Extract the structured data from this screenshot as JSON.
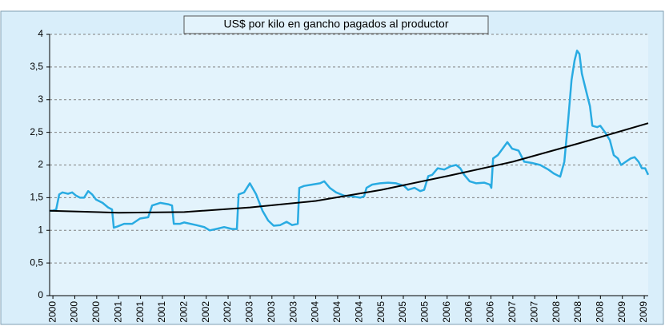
{
  "chart_data": {
    "type": "line",
    "title": "US$ por kilo en gancho pagados al productor",
    "xlim": [
      -0.15,
      27.18
    ],
    "xticks": [
      {
        "value": 0,
        "label": "2000"
      },
      {
        "value": 1,
        "label": "2000"
      },
      {
        "value": 2,
        "label": "2000"
      },
      {
        "value": 3,
        "label": "2001"
      },
      {
        "value": 4,
        "label": "2001"
      },
      {
        "value": 5,
        "label": "2001"
      },
      {
        "value": 6,
        "label": "2002"
      },
      {
        "value": 7,
        "label": "2002"
      },
      {
        "value": 8,
        "label": "2002"
      },
      {
        "value": 9,
        "label": "2003"
      },
      {
        "value": 10,
        "label": "2003"
      },
      {
        "value": 11,
        "label": "2003"
      },
      {
        "value": 12,
        "label": "2004"
      },
      {
        "value": 13,
        "label": "2004"
      },
      {
        "value": 14,
        "label": "2004"
      },
      {
        "value": 15,
        "label": "2005"
      },
      {
        "value": 16,
        "label": "2005"
      },
      {
        "value": 17,
        "label": "2005"
      },
      {
        "value": 18,
        "label": "2006"
      },
      {
        "value": 19,
        "label": "2006"
      },
      {
        "value": 20,
        "label": "2006"
      },
      {
        "value": 21,
        "label": "2007"
      },
      {
        "value": 22,
        "label": "2007"
      },
      {
        "value": 23,
        "label": "2008"
      },
      {
        "value": 24,
        "label": "2008"
      },
      {
        "value": 25,
        "label": "2008"
      },
      {
        "value": 26,
        "label": "2009"
      },
      {
        "value": 27,
        "label": "2009"
      }
    ],
    "ylim": [
      0,
      4
    ],
    "yticks": [
      0,
      {
        "value": 0.5,
        "label": "0,5"
      },
      1,
      {
        "value": 1.5,
        "label": "1,5"
      },
      2,
      {
        "value": 2.5,
        "label": "2,5"
      },
      3,
      {
        "value": 3.5,
        "label": "3,5"
      },
      4
    ],
    "grid": true,
    "series": [
      {
        "color": "#29abe2",
        "x": [
          -0.15,
          0,
          0.15,
          0.29,
          0.44,
          0.69,
          0.88,
          1.06,
          1.24,
          1.42,
          1.61,
          1.79,
          1.97,
          2.27,
          2.52,
          2.7,
          2.78,
          2.96,
          3.25,
          3.62,
          3.98,
          4.35,
          4.53,
          4.9,
          5.26,
          5.44,
          5.52,
          5.81,
          5.99,
          6.54,
          6.91,
          7.16,
          7.45,
          7.82,
          8.18,
          8.4,
          8.48,
          8.73,
          8.99,
          9.28,
          9.57,
          9.83,
          10.08,
          10.38,
          10.67,
          10.92,
          11.18,
          11.25,
          11.47,
          11.84,
          12.2,
          12.39,
          12.64,
          12.93,
          13.3,
          13.66,
          14.03,
          14.21,
          14.32,
          14.58,
          14.94,
          15.31,
          15.67,
          16.04,
          16.22,
          16.51,
          16.77,
          16.95,
          17.14,
          17.32,
          17.57,
          17.87,
          18.16,
          18.41,
          18.6,
          18.78,
          19.03,
          19.33,
          19.69,
          19.95,
          20.02,
          20.1,
          20.31,
          20.53,
          20.75,
          20.97,
          21.26,
          21.52,
          21.88,
          22.25,
          22.62,
          22.87,
          23.16,
          23.35,
          23.53,
          23.68,
          23.82,
          23.93,
          24.04,
          24.15,
          24.37,
          24.52,
          24.63,
          24.85,
          24.99,
          25.21,
          25.43,
          25.61,
          25.8,
          25.94,
          26.16,
          26.38,
          26.56,
          26.74,
          26.89,
          27.04,
          27.18
        ],
        "values": [
          1.3,
          1.3,
          1.32,
          1.55,
          1.58,
          1.56,
          1.58,
          1.53,
          1.5,
          1.5,
          1.6,
          1.55,
          1.47,
          1.42,
          1.35,
          1.32,
          1.04,
          1.06,
          1.1,
          1.1,
          1.18,
          1.2,
          1.38,
          1.42,
          1.4,
          1.38,
          1.1,
          1.1,
          1.12,
          1.08,
          1.05,
          1.0,
          1.02,
          1.05,
          1.02,
          1.02,
          1.55,
          1.58,
          1.72,
          1.55,
          1.3,
          1.15,
          1.07,
          1.08,
          1.13,
          1.08,
          1.1,
          1.65,
          1.68,
          1.7,
          1.72,
          1.75,
          1.65,
          1.58,
          1.53,
          1.52,
          1.5,
          1.52,
          1.65,
          1.7,
          1.72,
          1.73,
          1.72,
          1.68,
          1.62,
          1.65,
          1.6,
          1.62,
          1.83,
          1.85,
          1.95,
          1.93,
          1.98,
          2.0,
          1.95,
          1.85,
          1.75,
          1.72,
          1.73,
          1.7,
          1.65,
          2.1,
          2.15,
          2.25,
          2.35,
          2.25,
          2.22,
          2.05,
          2.03,
          2.0,
          1.93,
          1.87,
          1.82,
          2.05,
          2.7,
          3.3,
          3.6,
          3.75,
          3.7,
          3.4,
          3.1,
          2.9,
          2.6,
          2.58,
          2.6,
          2.5,
          2.38,
          2.15,
          2.1,
          2.0,
          2.05,
          2.1,
          2.12,
          2.05,
          1.95,
          1.95,
          1.85
        ]
      },
      {
        "color": "#000000",
        "x": [
          -0.15,
          3,
          6,
          9,
          12,
          15,
          18,
          21,
          24,
          27.18
        ],
        "values": [
          1.3,
          1.27,
          1.28,
          1.35,
          1.45,
          1.62,
          1.83,
          2.05,
          2.33,
          2.64
        ]
      }
    ]
  }
}
